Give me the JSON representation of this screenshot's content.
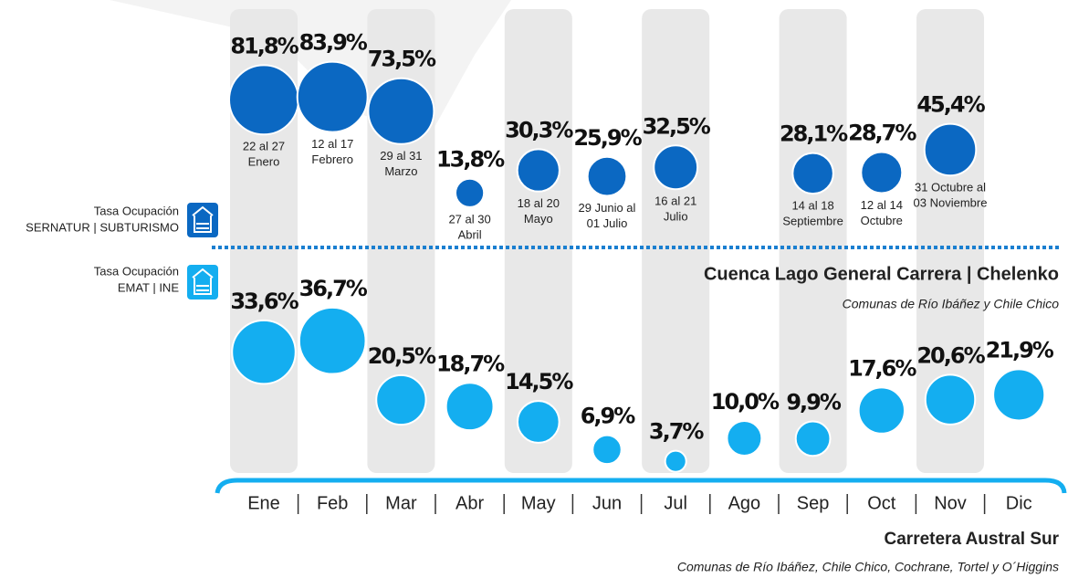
{
  "chart_data": {
    "type": "bubble",
    "categories": [
      "Ene",
      "Feb",
      "Mar",
      "Abr",
      "May",
      "Jun",
      "Jul",
      "Ago",
      "Sep",
      "Oct",
      "Nov",
      "Dic"
    ],
    "series": [
      {
        "name": "Tasa Ocupación",
        "source": "SERNATUR | SUBTURISMO",
        "color": "#0b68c2",
        "values": [
          81.8,
          83.9,
          73.5,
          13.8,
          30.3,
          25.9,
          32.5,
          null,
          28.1,
          28.7,
          45.4,
          null
        ],
        "value_labels": [
          "81,8%",
          "83,9%",
          "73,5%",
          "13,8%",
          "30,3%",
          "25,9%",
          "32,5%",
          null,
          "28,1%",
          "28,7%",
          "45,4%",
          null
        ],
        "date_labels": [
          [
            "22 al 27",
            "Enero"
          ],
          [
            "12 al 17",
            "Febrero"
          ],
          [
            "29 al 31",
            "Marzo"
          ],
          [
            "27 al 30",
            "Abril"
          ],
          [
            "18 al 20",
            "Mayo"
          ],
          [
            "29 Junio al",
            "01 Julio"
          ],
          [
            "16 al 21",
            "Julio"
          ],
          null,
          [
            "14 al 18",
            "Septiembre"
          ],
          [
            "12 al 14",
            "Octubre"
          ],
          [
            "31 Octubre al",
            "03 Noviembre"
          ],
          null
        ]
      },
      {
        "name": "Tasa Ocupación",
        "source": "EMAT | INE",
        "color": "#14aef0",
        "values": [
          33.6,
          36.7,
          20.5,
          18.7,
          14.5,
          6.9,
          3.7,
          10.0,
          9.9,
          17.6,
          20.6,
          21.9
        ],
        "value_labels": [
          "33,6%",
          "36,7%",
          "20,5%",
          "18,7%",
          "14,5%",
          "6,9%",
          "3,7%",
          "10,0%",
          "9,9%",
          "17,6%",
          "20,6%",
          "21,9%"
        ]
      }
    ],
    "region_top": {
      "title": "Cuenca Lago General Carrera | Chelenko",
      "subtitle": "Comunas de  Río Ibáñez y Chile Chico"
    },
    "region_bottom": {
      "title": "Carretera Austral Sur",
      "subtitle": "Comunas de Río Ibáñez, Chile Chico, Cochrane, Tortel y O´Higgins"
    }
  }
}
